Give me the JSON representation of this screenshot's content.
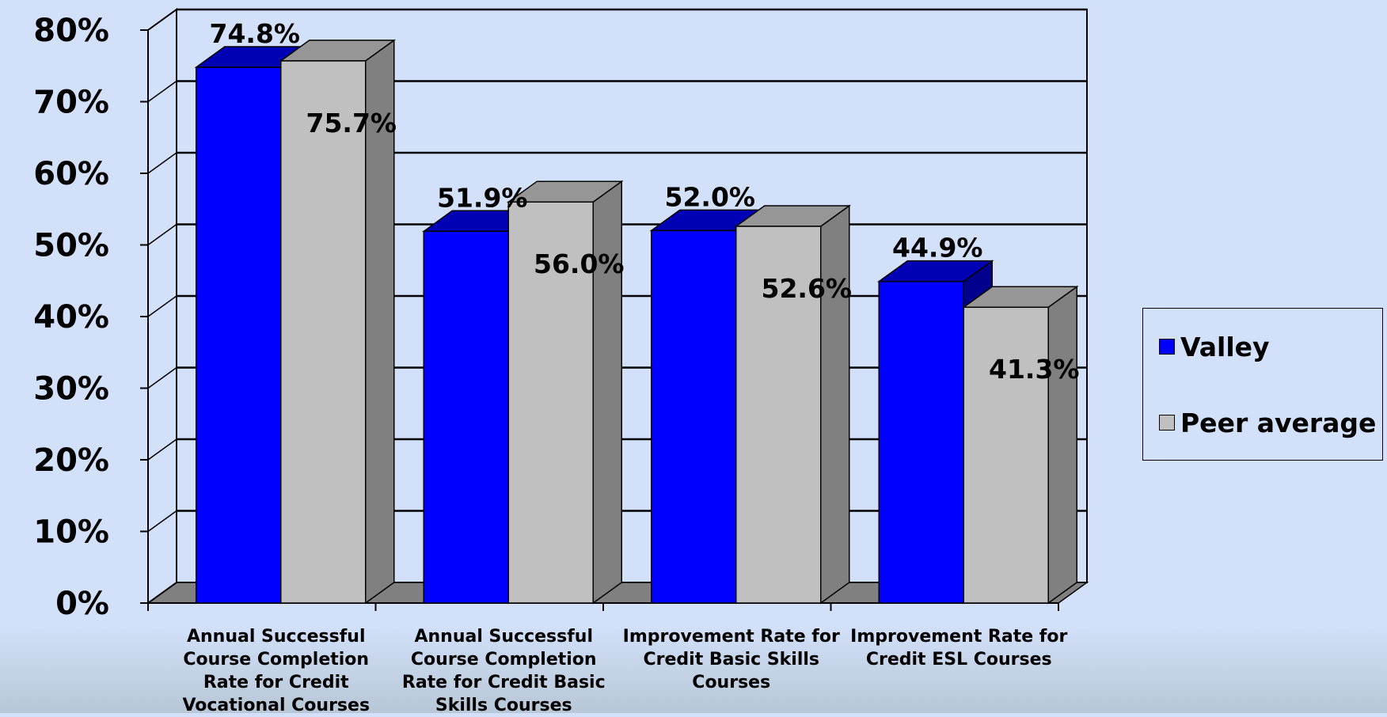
{
  "chart_data": {
    "type": "bar",
    "categories": [
      "Annual Successful Course Completion Rate for Credit Vocational Courses",
      "Annual Successful Course Completion Rate for Credit Basic Skills Courses",
      "Improvement Rate for Credit Basic Skills Courses",
      "Improvement Rate for Credit ESL Courses"
    ],
    "category_lines": [
      [
        "Annual Successful",
        "Course Completion",
        "Rate for Credit",
        "Vocational Courses"
      ],
      [
        "Annual Successful",
        "Course Completion",
        "Rate for Credit Basic",
        "Skills Courses"
      ],
      [
        "Improvement Rate for",
        "Credit Basic Skills",
        "Courses"
      ],
      [
        "Improvement Rate for",
        "Credit ESL Courses"
      ]
    ],
    "series": [
      {
        "name": "Valley",
        "values": [
          74.8,
          51.9,
          52.0,
          44.9
        ],
        "labels": [
          "74.8%",
          "51.9%",
          "52.0%",
          "44.9%"
        ],
        "color": "#0000ff",
        "top_color": "#0000b4",
        "side_color": "#00008c"
      },
      {
        "name": "Peer average",
        "values": [
          75.7,
          56.0,
          52.6,
          41.3
        ],
        "labels": [
          "75.7%",
          "56.0%",
          "52.6%",
          "41.3%"
        ],
        "color": "#c0c0c0",
        "top_color": "#969696",
        "side_color": "#808080"
      }
    ],
    "y_ticks": [
      "0%",
      "10%",
      "20%",
      "30%",
      "40%",
      "50%",
      "60%",
      "70%",
      "80%"
    ],
    "ylim": [
      0,
      80
    ],
    "grid": true,
    "legend_position": "right",
    "three_d": true
  }
}
